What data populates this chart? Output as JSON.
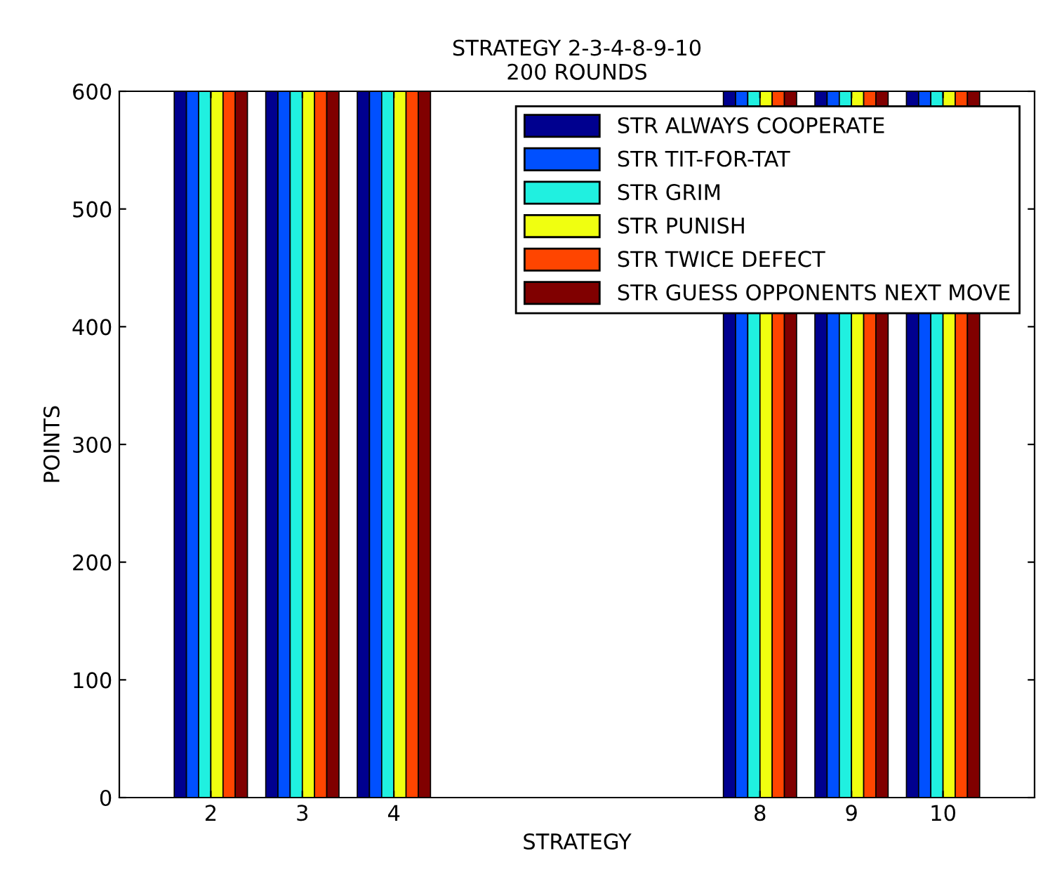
{
  "chart_data": {
    "type": "bar",
    "title": "STRATEGY 2-3-4-8-9-10\n200 ROUNDS",
    "xlabel": "STRATEGY",
    "ylabel": "POINTS",
    "x": [
      2,
      3,
      4,
      8,
      9,
      10
    ],
    "series": [
      {
        "name": "STR ALWAYS COOPERATE",
        "color": "#00008f",
        "values": [
          600,
          600,
          600,
          600,
          600,
          600
        ]
      },
      {
        "name": "STR TIT-FOR-TAT",
        "color": "#0050ff",
        "values": [
          600,
          600,
          600,
          600,
          600,
          600
        ]
      },
      {
        "name": "STR GRIM",
        "color": "#20f0e0",
        "values": [
          600,
          600,
          600,
          600,
          600,
          600
        ]
      },
      {
        "name": "STR PUNISH",
        "color": "#f0ff10",
        "values": [
          600,
          600,
          600,
          600,
          600,
          600
        ]
      },
      {
        "name": "STR TWICE DEFECT",
        "color": "#ff4500",
        "values": [
          600,
          600,
          600,
          600,
          600,
          600
        ]
      },
      {
        "name": "STR GUESS OPPONENTS NEXT MOVE",
        "color": "#800000",
        "values": [
          600,
          600,
          600,
          600,
          600,
          600
        ]
      }
    ],
    "xlim": [
      1,
      11
    ],
    "xticks": [
      2,
      3,
      4,
      8,
      9,
      10
    ],
    "ylim": [
      0,
      600
    ],
    "yticks": [
      0,
      100,
      200,
      300,
      400,
      500,
      600
    ],
    "grid": false,
    "legend": "top right"
  }
}
